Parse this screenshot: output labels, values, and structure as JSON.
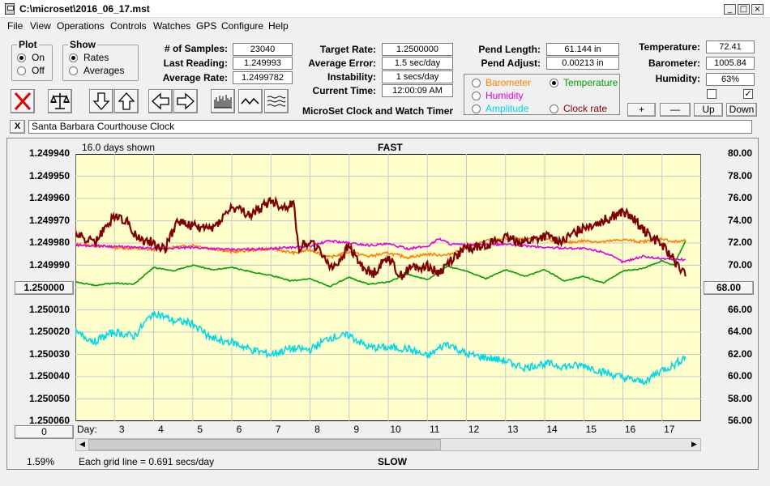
{
  "window": {
    "title": "C:\\microset\\2016_06_17.mst"
  },
  "menu": [
    "File",
    "View",
    "Operations",
    "Controls",
    "Watches",
    "GPS",
    "Configure",
    "Help"
  ],
  "plot_group": {
    "title": "Plot",
    "options": [
      "On",
      "Off"
    ],
    "selected": "On"
  },
  "show_group": {
    "title": "Show",
    "options": [
      "Rates",
      "Averages"
    ],
    "selected": "Rates"
  },
  "stats": {
    "samples_label": "# of Samples:",
    "samples": "23040",
    "last_label": "Last Reading:",
    "last": "1.249993",
    "avg_label": "Average Rate:",
    "avg": "1.2499782"
  },
  "rates": {
    "target_label": "Target Rate:",
    "target": "1.2500000",
    "error_label": "Average Error:",
    "error": "1.5 sec/day",
    "instab_label": "Instability:",
    "instab": "1 secs/day",
    "time_label": "Current Time:",
    "time": "12:00:09 AM",
    "caption": "MicroSet Clock and Watch Timer"
  },
  "pend": {
    "length_label": "Pend Length:",
    "length": "61.144 in",
    "adjust_label": "Pend Adjust:",
    "adjust": "0.00213 in"
  },
  "sensor_options": [
    {
      "label": "Barometer",
      "color": "#ff8000",
      "selected": false
    },
    {
      "label": "Temperature",
      "color": "#00a000",
      "selected": true
    },
    {
      "label": "Humidity",
      "color": "#e000e0",
      "selected": false
    },
    {
      "label": "Clock rate",
      "color": "#800000",
      "selected": false
    },
    {
      "label": "Amplitude",
      "color": "#00d8e8",
      "selected": false
    }
  ],
  "env": {
    "temp_label": "Temperature:",
    "temp": "72.41",
    "baro_label": "Barometer:",
    "baro": "1005.84",
    "hum_label": "Humidity:",
    "hum": "63%"
  },
  "env_checks": [
    false,
    true
  ],
  "adj_buttons": [
    "+",
    "—",
    "Up",
    "Down"
  ],
  "clock_name": "Santa Barbara Courthouse Clock",
  "close_label": "X",
  "chart_data": {
    "type": "line",
    "title": "FAST",
    "bottom_label": "SLOW",
    "days_shown": "16.0 days shown",
    "grid_note": "Each grid line = 0.691 secs/day",
    "percent": "1.59%",
    "left_ticks": [
      "1.249940",
      "1.249950",
      "1.249960",
      "1.249970",
      "1.249980",
      "1.249990",
      "1.250000",
      "1.250010",
      "1.250020",
      "1.250030",
      "1.250040",
      "1.250050",
      "1.250060"
    ],
    "right_ticks": [
      "80.00",
      "78.00",
      "76.00",
      "74.00",
      "72.00",
      "70.00",
      "68.00",
      "66.00",
      "64.00",
      "62.00",
      "60.00",
      "58.00",
      "56.00"
    ],
    "left_mid_button": "1.250000",
    "right_mid_button": "68.00",
    "left_bottom_button": "0",
    "x_axis_label": "Day:",
    "days": [
      "3",
      "4",
      "5",
      "6",
      "7",
      "8",
      "9",
      "10",
      "11",
      "12",
      "13",
      "14",
      "15",
      "16",
      "17"
    ],
    "x_range": [
      2.0,
      18.0
    ],
    "right_range": [
      56,
      80
    ],
    "grid": true,
    "series": [
      {
        "name": "Barometer",
        "color": "#ff8000",
        "x": [
          2,
          3,
          4,
          5,
          6,
          7,
          7.6,
          8,
          8.5,
          9,
          9.5,
          10,
          10.5,
          11,
          11.5,
          12,
          12.5,
          13,
          13.5,
          14,
          14.5,
          15,
          15.5,
          16,
          16.5,
          17,
          17.3,
          17.6
        ],
        "y": [
          71.9,
          71.6,
          71.4,
          71.8,
          71.2,
          71.5,
          71.1,
          71.4,
          70.7,
          71.2,
          70.8,
          71.1,
          70.7,
          71.0,
          70.9,
          71.6,
          72.2,
          72.4,
          72.3,
          72.4,
          72.0,
          72.2,
          72.1,
          72.3,
          72.1,
          72.4,
          72.1,
          72.2
        ]
      },
      {
        "name": "Temperature",
        "color": "#00a000",
        "x": [
          2,
          2.5,
          3,
          3.5,
          4,
          4.5,
          5,
          5.5,
          6,
          6.5,
          7,
          7.5,
          8,
          8.5,
          9,
          9.5,
          10,
          10.5,
          11,
          11.5,
          12,
          12.5,
          13,
          13.5,
          14,
          14.5,
          15,
          15.5,
          16,
          16.5,
          17,
          17.3,
          17.6
        ],
        "y": [
          68.5,
          68.2,
          68.4,
          68.3,
          69.8,
          69.5,
          70.0,
          69.6,
          69.8,
          69.4,
          69.1,
          68.6,
          68.8,
          68.1,
          68.9,
          68.3,
          68.5,
          69.2,
          68.7,
          69.9,
          69.5,
          68.8,
          69.6,
          69.0,
          69.6,
          68.6,
          69.0,
          68.4,
          69.5,
          69.7,
          70.4,
          70.0,
          72.2
        ]
      },
      {
        "name": "Humidity",
        "color": "#e000e0",
        "x": [
          2,
          3,
          4,
          5,
          6,
          7,
          8,
          8.5,
          9,
          9.5,
          10,
          10.5,
          11,
          11.3,
          11.6,
          12,
          13,
          14,
          15,
          15.5,
          16,
          16.5,
          17,
          17.6
        ],
        "y": [
          71.8,
          71.7,
          71.5,
          71.6,
          71.4,
          71.5,
          71.7,
          72.2,
          72.0,
          71.8,
          71.9,
          71.5,
          71.7,
          72.4,
          71.9,
          71.8,
          71.9,
          71.6,
          71.5,
          71.2,
          70.3,
          70.8,
          70.6,
          70.5
        ]
      },
      {
        "name": "Clock rate",
        "color": "#800000",
        "x": [
          2,
          2.5,
          3,
          3.3,
          3.6,
          4,
          4.3,
          4.6,
          5,
          5.5,
          6,
          6.5,
          7,
          7.3,
          7.6,
          7.7,
          8,
          8.3,
          8.6,
          9,
          9.3,
          9.6,
          10,
          10.3,
          10.6,
          11,
          11.3,
          11.6,
          12,
          12.5,
          13,
          13.5,
          14,
          14.5,
          15,
          15.5,
          16,
          16.3,
          16.6,
          17,
          17.3,
          17.6
        ],
        "y": [
          72.8,
          72.0,
          74.5,
          74.0,
          72.4,
          72.0,
          71.5,
          74.0,
          73.5,
          73.3,
          75.2,
          74.5,
          75.8,
          75.2,
          75.5,
          71.5,
          72.2,
          71.0,
          69.7,
          71.7,
          70.0,
          69.2,
          70.8,
          69.0,
          69.8,
          70.0,
          69.3,
          70.5,
          71.5,
          71.9,
          72.4,
          72.1,
          72.6,
          72.2,
          73.5,
          74.0,
          74.8,
          74.0,
          73.0,
          71.8,
          70.5,
          69.0
        ]
      },
      {
        "name": "Amplitude",
        "color": "#00d8e8",
        "x": [
          2,
          2.5,
          3,
          3.5,
          4,
          4.5,
          5,
          5.5,
          6,
          6.5,
          7,
          7.5,
          8,
          8.5,
          9,
          9.5,
          10,
          10.5,
          11,
          11.5,
          12,
          12.5,
          13,
          13.5,
          14,
          14.5,
          15,
          15.5,
          16,
          16.5,
          17,
          17.3,
          17.6
        ],
        "y": [
          63.9,
          63.2,
          64.0,
          63.6,
          65.8,
          65.0,
          64.8,
          63.4,
          63.1,
          62.4,
          62.0,
          62.5,
          62.4,
          63.5,
          63.7,
          62.6,
          62.6,
          62.5,
          61.8,
          63.0,
          62.0,
          61.7,
          61.4,
          60.8,
          61.2,
          60.9,
          61.0,
          60.4,
          59.9,
          59.5,
          60.6,
          61.0,
          61.8
        ]
      }
    ]
  }
}
